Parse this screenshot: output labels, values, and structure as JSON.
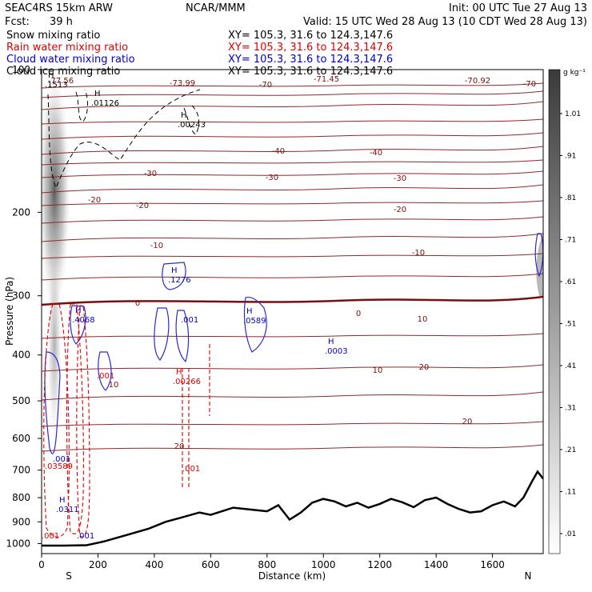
{
  "header": {
    "model": "SEAC4RS 15km ARW",
    "center": "NCAR/MMM",
    "init": "Init: 00 UTC Tue 27 Aug 13",
    "fcst_label": "Fcst:",
    "fcst_value": "39 h",
    "valid": "Valid: 15 UTC Wed 28 Aug 13 (10 CDT Wed 28 Aug 13)",
    "fields": [
      {
        "name": "Snow mixing ratio",
        "color": "#000000",
        "xy": "XY= 105.3, 31.6 to 124.3,147.6"
      },
      {
        "name": "Rain water mixing ratio",
        "color": "#e00000",
        "xy": "XY= 105.3, 31.6 to 124.3,147.6"
      },
      {
        "name": "Cloud water mixing ratio",
        "color": "#0000c8",
        "xy": "XY= 105.3, 31.6 to 124.3,147.6"
      },
      {
        "name": "Cloud ice mixing ratio",
        "color": "#000000",
        "xy": "XY= 105.3, 31.6 to 124.3,147.6"
      }
    ]
  },
  "chart_data": {
    "type": "contour",
    "xlabel": "Distance (km)",
    "ylabel": "Pressure (hPa)",
    "xlim": [
      0,
      1780
    ],
    "ylim": [
      1050,
      100
    ],
    "y_scale": "log",
    "x_ticks": [
      0,
      200,
      400,
      600,
      800,
      1000,
      1200,
      1400,
      1600
    ],
    "y_ticks": [
      100,
      200,
      300,
      400,
      500,
      600,
      700,
      800,
      900,
      1000
    ],
    "end_labels": {
      "left": "S",
      "right": "N"
    },
    "colorbar": {
      "unit": "g kg⁻¹",
      "ticks": [
        ".01",
        ".11",
        ".21",
        ".31",
        ".41",
        ".51",
        ".61",
        ".71",
        ".81",
        ".91",
        "1.01"
      ]
    },
    "temperature_labels": [
      "-77.56",
      "-73.99",
      "-70",
      "-71.45",
      "-70.92",
      "-70",
      "-40",
      "-40",
      "-30",
      "-30",
      "-30",
      "-20",
      "-20",
      "-20",
      "-10",
      "-10",
      "0",
      "0",
      "10",
      "10",
      "10",
      "20",
      "20",
      "20"
    ],
    "max_labels": [
      {
        "label": "H",
        "value": ".1513",
        "color": "#000000"
      },
      {
        "label": "H",
        "value": ".01126",
        "color": "#000000"
      },
      {
        "label": "H",
        "value": ".00243",
        "color": "#000000"
      },
      {
        "label": "H",
        "value": ".1276",
        "color": "#0000c8"
      },
      {
        "label": "H",
        "value": ".4068",
        "color": "#0000c8"
      },
      {
        "label": "",
        "value": ".001",
        "color": "#0000c8"
      },
      {
        "label": "H",
        "value": ".0589",
        "color": "#0000c8"
      },
      {
        "label": "H",
        "value": ".0003",
        "color": "#0000c8"
      },
      {
        "label": "",
        "value": ".001",
        "color": "#0000c8"
      },
      {
        "label": "",
        "value": ".001",
        "color": "#0000c8"
      },
      {
        "label": "H",
        "value": ".0311",
        "color": "#0000c8"
      },
      {
        "label": "H",
        "value": ".00266",
        "color": "#e00000"
      },
      {
        "label": "",
        "value": ".001",
        "color": "#e00000"
      },
      {
        "label": "",
        "value": ".03589",
        "color": "#e00000"
      },
      {
        "label": "",
        "value": ".001",
        "color": "#e00000"
      },
      {
        "label": "",
        "value": ".001",
        "color": "#e00000"
      }
    ],
    "terrain_profile": [
      [
        0,
        1010
      ],
      [
        80,
        1010
      ],
      [
        160,
        1008
      ],
      [
        220,
        990
      ],
      [
        300,
        960
      ],
      [
        380,
        930
      ],
      [
        440,
        900
      ],
      [
        500,
        880
      ],
      [
        560,
        860
      ],
      [
        600,
        870
      ],
      [
        640,
        855
      ],
      [
        680,
        840
      ],
      [
        720,
        845
      ],
      [
        760,
        850
      ],
      [
        800,
        855
      ],
      [
        840,
        830
      ],
      [
        880,
        890
      ],
      [
        920,
        860
      ],
      [
        960,
        820
      ],
      [
        1000,
        805
      ],
      [
        1040,
        815
      ],
      [
        1080,
        835
      ],
      [
        1120,
        820
      ],
      [
        1160,
        840
      ],
      [
        1200,
        825
      ],
      [
        1240,
        805
      ],
      [
        1280,
        818
      ],
      [
        1320,
        838
      ],
      [
        1360,
        810
      ],
      [
        1400,
        800
      ],
      [
        1440,
        825
      ],
      [
        1480,
        845
      ],
      [
        1520,
        860
      ],
      [
        1560,
        855
      ],
      [
        1600,
        830
      ],
      [
        1640,
        815
      ],
      [
        1680,
        835
      ],
      [
        1710,
        800
      ],
      [
        1740,
        740
      ],
      [
        1760,
        705
      ],
      [
        1780,
        730
      ]
    ]
  }
}
